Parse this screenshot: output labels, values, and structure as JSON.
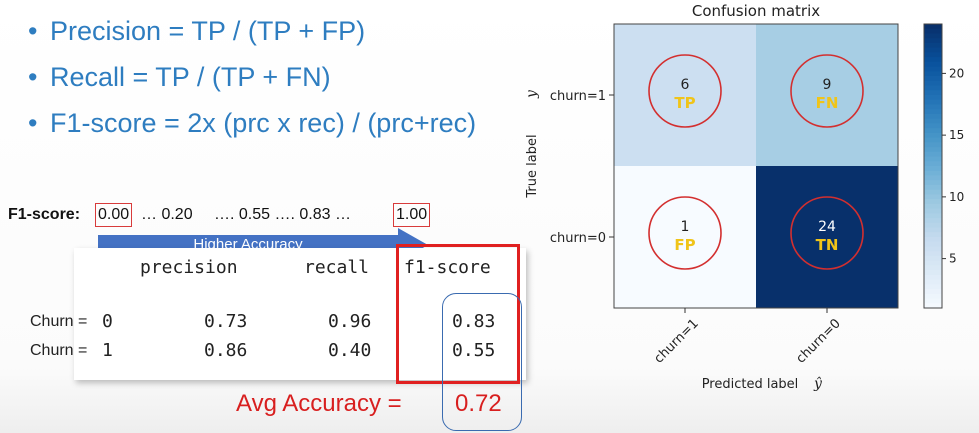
{
  "bullets": [
    "Precision = TP / (TP + FP)",
    "Recall =  TP / (TP + FN)",
    "F1-score = 2x (prc x rec) / (prc+rec)"
  ],
  "scale": {
    "label": "F1-score:",
    "items": [
      "0.00",
      "… 0.20",
      "…. 0.55 …. 0.83 …",
      "1.00"
    ],
    "arrow_text": "Higher Accuracy"
  },
  "report": {
    "headers": [
      "precision",
      "recall",
      "f1-score"
    ],
    "rows": [
      {
        "label": "Churn = ",
        "cls": "0",
        "precision": "0.73",
        "recall": "0.96",
        "f1": "0.83"
      },
      {
        "label": "Churn = ",
        "cls": "1",
        "precision": "0.86",
        "recall": "0.40",
        "f1": "0.55"
      }
    ],
    "avg_label": "Avg Accuracy =",
    "avg_value": "0.72"
  },
  "chart_data": {
    "type": "heatmap",
    "title": "Confusion matrix",
    "xlabel": "Predicted label",
    "ylabel": "True label",
    "y_symbol": "y",
    "x_symbol": "ŷ",
    "x_categories": [
      "churn=1",
      "churn=0"
    ],
    "y_categories": [
      "churn=1",
      "churn=0"
    ],
    "values": [
      [
        6,
        9
      ],
      [
        1,
        24
      ]
    ],
    "cell_tags": [
      [
        "TP",
        "FN"
      ],
      [
        "FP",
        "TN"
      ]
    ],
    "colorbar_ticks": [
      5,
      10,
      15,
      20
    ],
    "colorbar_range": [
      1,
      24
    ],
    "colormap": "Blues",
    "tag_color": "#f0c419",
    "circle_color": "#d32f2f"
  }
}
